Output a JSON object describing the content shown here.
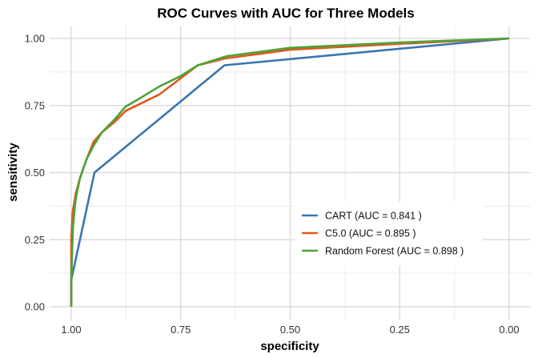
{
  "chart_data": {
    "type": "line",
    "title": "ROC Curves with AUC for Three Models",
    "xlabel": "specificity",
    "ylabel": "sensitivity",
    "xlim": [
      1.0,
      0.0
    ],
    "ylim": [
      0.0,
      1.0
    ],
    "x_reversed": true,
    "xticks": [
      "1.00",
      "0.75",
      "0.50",
      "0.25",
      "0.00"
    ],
    "xtick_values": [
      1.0,
      0.75,
      0.5,
      0.25,
      0.0
    ],
    "yticks": [
      "0.00",
      "0.25",
      "0.50",
      "0.75",
      "1.00"
    ],
    "ytick_values": [
      0.0,
      0.25,
      0.5,
      0.75,
      1.0
    ],
    "grid": true,
    "legend_position": "inside-bottom-right",
    "series": [
      {
        "name": "CART (AUC = 0.841 )",
        "color": "#3a75b0",
        "specificity": [
          1.0,
          1.0,
          0.947,
          0.65,
          0.0
        ],
        "sensitivity": [
          0.0,
          0.1,
          0.5,
          0.9,
          1.0
        ]
      },
      {
        "name": "C5.0 (AUC = 0.895 )",
        "color": "#e6561e",
        "specificity": [
          1.0,
          1.0,
          0.997,
          0.99,
          0.98,
          0.965,
          0.949,
          0.93,
          0.9,
          0.876,
          0.8,
          0.711,
          0.65,
          0.5,
          0.25,
          0.0
        ],
        "sensitivity": [
          0.0,
          0.25,
          0.35,
          0.42,
          0.48,
          0.55,
          0.615,
          0.65,
          0.69,
          0.73,
          0.79,
          0.9,
          0.925,
          0.958,
          0.98,
          1.0
        ]
      },
      {
        "name": "Random Forest (AUC = 0.898 )",
        "color": "#4aa43a",
        "specificity": [
          1.0,
          1.0,
          0.996,
          0.99,
          0.98,
          0.965,
          0.949,
          0.93,
          0.9,
          0.876,
          0.84,
          0.8,
          0.75,
          0.711,
          0.645,
          0.5,
          0.25,
          0.0
        ],
        "sensitivity": [
          0.0,
          0.1,
          0.3,
          0.4,
          0.48,
          0.55,
          0.6,
          0.65,
          0.7,
          0.746,
          0.78,
          0.82,
          0.86,
          0.9,
          0.934,
          0.965,
          0.985,
          1.0
        ]
      }
    ]
  }
}
